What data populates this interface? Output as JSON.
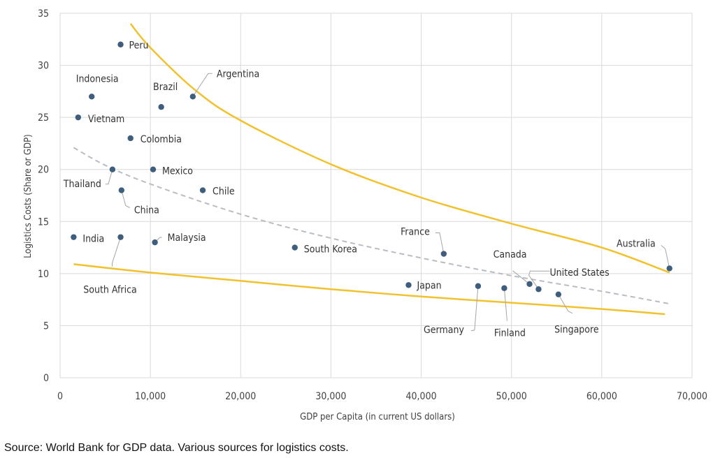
{
  "chart_data": {
    "type": "scatter",
    "xlabel": "GDP per Capita (in current US dollars)",
    "ylabel": "Logistics Costs (Share or GDP)",
    "xlim": [
      0,
      70000
    ],
    "ylim": [
      0,
      35
    ],
    "x_ticks": [
      "0",
      "10,000",
      "20,000",
      "30,000",
      "40,000",
      "50,000",
      "60,000",
      "70,000"
    ],
    "y_ticks": [
      "0",
      "5",
      "10",
      "15",
      "20",
      "25",
      "30",
      "35"
    ],
    "grid": true,
    "points": [
      {
        "label": "Peru",
        "x": 6700,
        "y": 32
      },
      {
        "label": "Indonesia",
        "x": 3500,
        "y": 27
      },
      {
        "label": "Brazil",
        "x": 11200,
        "y": 26
      },
      {
        "label": "Argentina",
        "x": 14700,
        "y": 27
      },
      {
        "label": "Vietnam",
        "x": 2000,
        "y": 25
      },
      {
        "label": "Colombia",
        "x": 7800,
        "y": 23
      },
      {
        "label": "Thailand",
        "x": 5800,
        "y": 20
      },
      {
        "label": "Mexico",
        "x": 10300,
        "y": 20
      },
      {
        "label": "China",
        "x": 6800,
        "y": 18
      },
      {
        "label": "Chile",
        "x": 15800,
        "y": 18
      },
      {
        "label": "India",
        "x": 1500,
        "y": 13.5
      },
      {
        "label": "South Africa",
        "x": 6700,
        "y": 13.5
      },
      {
        "label": "Malaysia",
        "x": 10500,
        "y": 13
      },
      {
        "label": "South Korea",
        "x": 26000,
        "y": 12.5
      },
      {
        "label": "France",
        "x": 42500,
        "y": 11.9
      },
      {
        "label": "Japan",
        "x": 38600,
        "y": 8.9
      },
      {
        "label": "Germany",
        "x": 46300,
        "y": 8.8
      },
      {
        "label": "Finland",
        "x": 49200,
        "y": 8.6
      },
      {
        "label": "Canada",
        "x": 52000,
        "y": 9
      },
      {
        "label": "United States",
        "x": 53000,
        "y": 8.5
      },
      {
        "label": "Singapore",
        "x": 55200,
        "y": 8
      },
      {
        "label": "Australia",
        "x": 67500,
        "y": 10.5
      }
    ],
    "upper_curve": [
      [
        7800,
        34.0
      ],
      [
        10000,
        31.7
      ],
      [
        15000,
        27.6
      ],
      [
        20000,
        24.7
      ],
      [
        30000,
        20.5
      ],
      [
        40000,
        17.3
      ],
      [
        50000,
        14.8
      ],
      [
        60000,
        12.5
      ],
      [
        67500,
        10.1
      ]
    ],
    "lower_curve": [
      [
        1500,
        10.9
      ],
      [
        10000,
        10.1
      ],
      [
        20000,
        9.3
      ],
      [
        30000,
        8.5
      ],
      [
        40000,
        7.8
      ],
      [
        50000,
        7.2
      ],
      [
        60000,
        6.6
      ],
      [
        67000,
        6.1
      ]
    ],
    "trend_curve": [
      [
        1500,
        22.1
      ],
      [
        5000,
        20.4
      ],
      [
        10000,
        18.6
      ],
      [
        20000,
        15.7
      ],
      [
        30000,
        13.4
      ],
      [
        40000,
        11.5
      ],
      [
        50000,
        9.8
      ],
      [
        60000,
        8.3
      ],
      [
        67500,
        7.1
      ]
    ]
  },
  "source": "Source: World Bank for GDP data. Various sources for logistics costs.",
  "colors": {
    "point": "#3f5d7d",
    "envelope": "#f2c12e",
    "trend": "#b8bcc4",
    "grid": "#d9d9d9",
    "leader": "#a6a6a6"
  }
}
